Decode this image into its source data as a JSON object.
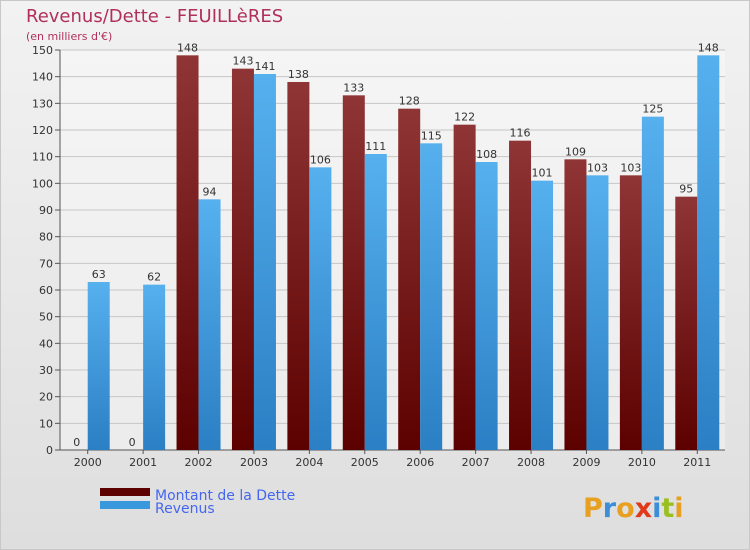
{
  "chart_data": {
    "type": "bar",
    "title": "Revenus/Dette - FEUILLèRES",
    "subtitle": "(en milliers d'€)",
    "categories": [
      "2000",
      "2001",
      "2002",
      "2003",
      "2004",
      "2005",
      "2006",
      "2007",
      "2008",
      "2009",
      "2010",
      "2011"
    ],
    "series": [
      {
        "name": "Montant de la Dette",
        "color": "#7a1a1a",
        "values": [
          0,
          0,
          148,
          143,
          138,
          133,
          128,
          122,
          116,
          109,
          103,
          95
        ]
      },
      {
        "name": "Revenus",
        "color": "#3a99dd",
        "values": [
          63,
          62,
          94,
          141,
          106,
          111,
          115,
          108,
          101,
          103,
          125,
          148
        ]
      }
    ],
    "ylim": [
      0,
      150
    ],
    "yticks": [
      0,
      10,
      20,
      30,
      40,
      50,
      60,
      70,
      80,
      90,
      100,
      110,
      120,
      130,
      140,
      150
    ],
    "grid": true,
    "legend_position": "bottom-left"
  },
  "brand": "Proxiti"
}
